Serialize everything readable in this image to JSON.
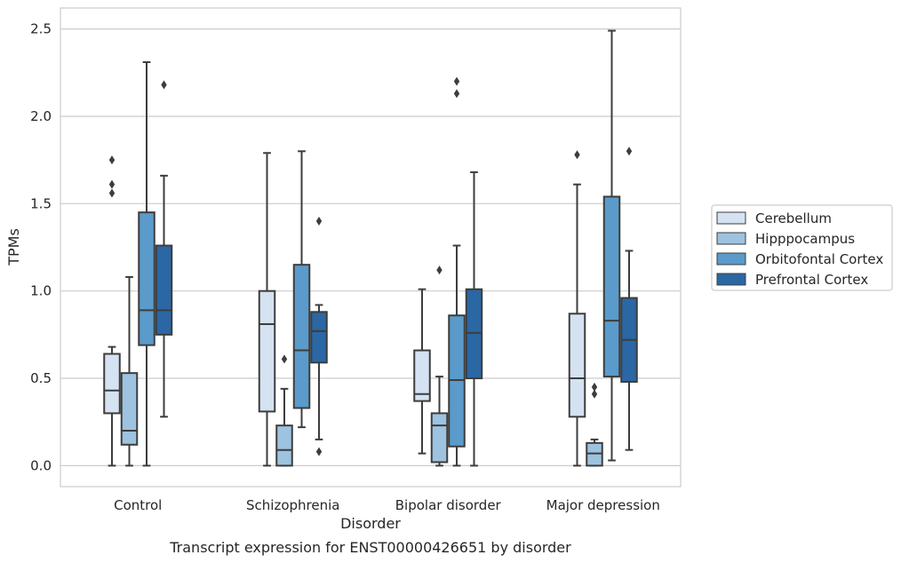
{
  "caption": "Transcript expression for ENST00000426651 by disorder",
  "chart_data": {
    "type": "box",
    "xlabel": "Disorder",
    "ylabel": "TPMs",
    "ylim": [
      -0.12,
      2.62
    ],
    "yticks": [
      0.0,
      0.5,
      1.0,
      1.5,
      2.0,
      2.5
    ],
    "ytick_labels": [
      "0.0",
      "0.5",
      "1.0",
      "1.5",
      "2.0",
      "2.5"
    ],
    "grid": "horizontal",
    "legend_position": "right",
    "categories": [
      "Control",
      "Schizophrenia",
      "Bipolar disorder",
      "Major depression"
    ],
    "series": [
      {
        "name": "Cerebellum",
        "color": "#d4e2f2",
        "boxes": [
          {
            "whislo": 0.0,
            "q1": 0.3,
            "med": 0.43,
            "q3": 0.64,
            "whishi": 0.68,
            "fliers": [
              1.56,
              1.61,
              1.75
            ]
          },
          {
            "whislo": 0.0,
            "q1": 0.31,
            "med": 0.81,
            "q3": 1.0,
            "whishi": 1.79,
            "fliers": []
          },
          {
            "whislo": 0.07,
            "q1": 0.37,
            "med": 0.41,
            "q3": 0.66,
            "whishi": 1.01,
            "fliers": []
          },
          {
            "whislo": 0.0,
            "q1": 0.28,
            "med": 0.5,
            "q3": 0.87,
            "whishi": 1.61,
            "fliers": [
              1.78
            ]
          }
        ]
      },
      {
        "name": "Hipppocampus",
        "color": "#9dc3e0",
        "boxes": [
          {
            "whislo": 0.0,
            "q1": 0.12,
            "med": 0.2,
            "q3": 0.53,
            "whishi": 1.08,
            "fliers": []
          },
          {
            "whislo": 0.0,
            "q1": 0.0,
            "med": 0.09,
            "q3": 0.23,
            "whishi": 0.44,
            "fliers": [
              0.61
            ]
          },
          {
            "whislo": 0.0,
            "q1": 0.02,
            "med": 0.23,
            "q3": 0.3,
            "whishi": 0.51,
            "fliers": [
              1.12
            ]
          },
          {
            "whislo": 0.0,
            "q1": 0.0,
            "med": 0.07,
            "q3": 0.13,
            "whishi": 0.15,
            "fliers": [
              0.41,
              0.45
            ]
          }
        ]
      },
      {
        "name": "Orbitofontal Cortex",
        "color": "#5a9bcb",
        "boxes": [
          {
            "whislo": 0.0,
            "q1": 0.69,
            "med": 0.89,
            "q3": 1.45,
            "whishi": 2.31,
            "fliers": []
          },
          {
            "whislo": 0.22,
            "q1": 0.33,
            "med": 0.66,
            "q3": 1.15,
            "whishi": 1.8,
            "fliers": []
          },
          {
            "whislo": 0.0,
            "q1": 0.11,
            "med": 0.49,
            "q3": 0.86,
            "whishi": 1.26,
            "fliers": [
              2.13,
              2.2
            ]
          },
          {
            "whislo": 0.03,
            "q1": 0.51,
            "med": 0.83,
            "q3": 1.54,
            "whishi": 2.49,
            "fliers": []
          }
        ]
      },
      {
        "name": "Prefrontal Cortex",
        "color": "#2a67a4",
        "boxes": [
          {
            "whislo": 0.28,
            "q1": 0.75,
            "med": 0.89,
            "q3": 1.26,
            "whishi": 1.66,
            "fliers": [
              2.18
            ]
          },
          {
            "whislo": 0.15,
            "q1": 0.59,
            "med": 0.77,
            "q3": 0.88,
            "whishi": 0.92,
            "fliers": [
              0.08,
              1.4
            ]
          },
          {
            "whislo": 0.0,
            "q1": 0.5,
            "med": 0.76,
            "q3": 1.01,
            "whishi": 1.68,
            "fliers": []
          },
          {
            "whislo": 0.09,
            "q1": 0.48,
            "med": 0.72,
            "q3": 0.96,
            "whishi": 1.23,
            "fliers": [
              1.8
            ]
          }
        ]
      }
    ]
  }
}
